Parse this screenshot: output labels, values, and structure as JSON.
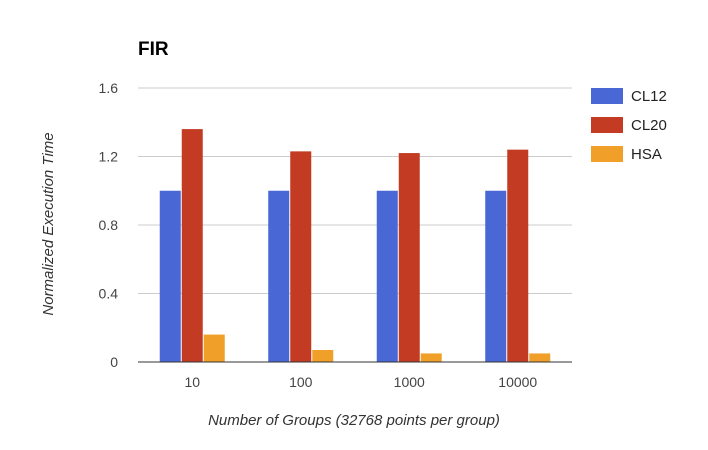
{
  "chart_data": {
    "type": "bar",
    "title": "FIR",
    "xlabel": "Number of Groups (32768 points per group)",
    "ylabel": "Normalized Execution Time",
    "categories": [
      "10",
      "100",
      "1000",
      "10000"
    ],
    "series": [
      {
        "name": "CL12",
        "color": "#4a67d6",
        "values": [
          1.0,
          1.0,
          1.0,
          1.0
        ]
      },
      {
        "name": "CL20",
        "color": "#c23b22",
        "values": [
          1.36,
          1.23,
          1.22,
          1.24
        ]
      },
      {
        "name": "HSA",
        "color": "#f0a028",
        "values": [
          0.16,
          0.07,
          0.05,
          0.05
        ]
      }
    ],
    "ylim": [
      0,
      1.6
    ],
    "yticks": [
      0,
      0.4,
      0.8,
      1.2,
      1.6
    ],
    "ytick_labels": [
      "0",
      "0.4",
      "0.8",
      "1.2",
      "1.6"
    ],
    "grid": true,
    "legend": "right"
  }
}
